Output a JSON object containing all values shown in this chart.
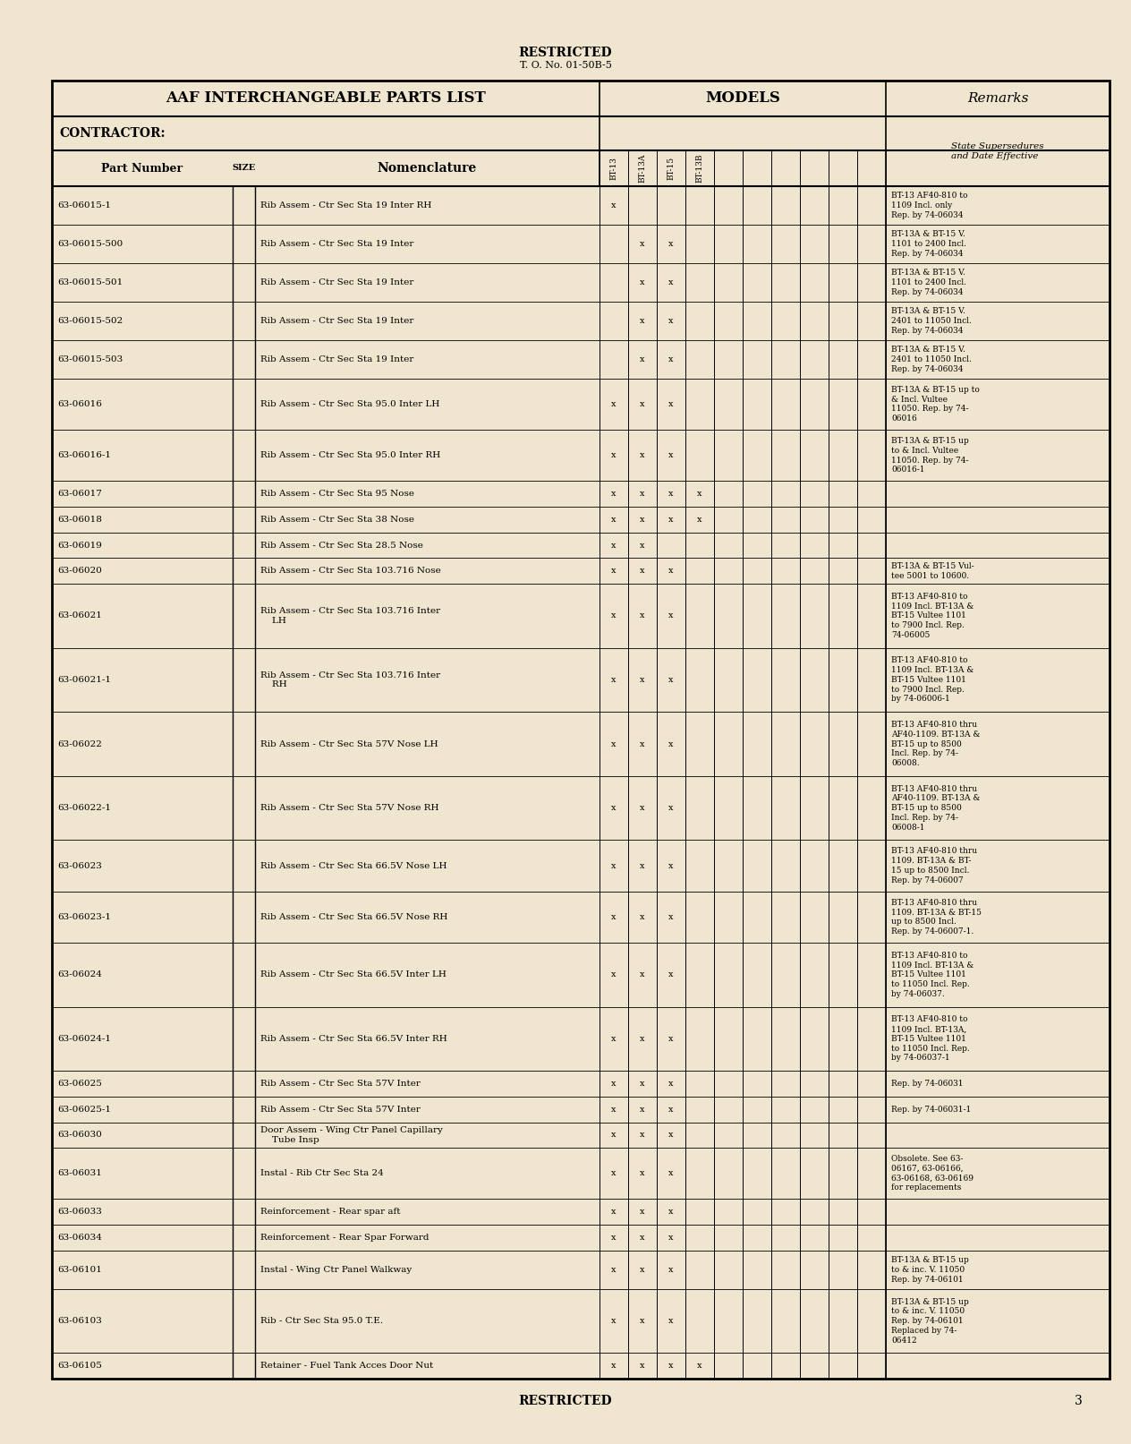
{
  "title_top": "RESTRICTED",
  "subtitle_top": "T. O. No. 01-50B-5",
  "title_bottom": "RESTRICTED",
  "page_number": "3",
  "header_left": "AAF INTERCHANGEABLE PARTS LIST",
  "header_models": "MODELS",
  "header_remarks": "Remarks",
  "contractor_label": "CONTRACTOR:",
  "col_part": "Part Number",
  "col_size": "SIZE",
  "col_nom": "Nomenclature",
  "col_state": "State Supersedures\nand Date Effective",
  "model_labels": [
    "BT-13",
    "BT-13A",
    "BT-15",
    "BT-13B",
    "",
    "",
    "",
    "",
    "",
    ""
  ],
  "bg_color": "#f0e6d0",
  "rows": [
    {
      "part": "63-06015-1",
      "nom": "Rib Assem - Ctr Sec Sta 19 Inter RH",
      "marks": [
        1,
        0,
        0,
        0,
        0,
        0,
        0,
        0,
        0,
        0
      ],
      "remarks": "BT-13 AF40-810 to\n1109 Incl. only\nRep. by 74-06034"
    },
    {
      "part": "63-06015-500",
      "nom": "Rib Assem - Ctr Sec Sta 19 Inter",
      "marks": [
        0,
        1,
        1,
        0,
        0,
        0,
        0,
        0,
        0,
        0
      ],
      "remarks": "BT-13A & BT-15 V.\n1101 to 2400 Incl.\nRep. by 74-06034"
    },
    {
      "part": "63-06015-501",
      "nom": "Rib Assem - Ctr Sec Sta 19 Inter",
      "marks": [
        0,
        1,
        1,
        0,
        0,
        0,
        0,
        0,
        0,
        0
      ],
      "remarks": "BT-13A & BT-15 V.\n1101 to 2400 Incl.\nRep. by 74-06034"
    },
    {
      "part": "63-06015-502",
      "nom": "Rib Assem - Ctr Sec Sta 19 Inter",
      "marks": [
        0,
        1,
        1,
        0,
        0,
        0,
        0,
        0,
        0,
        0
      ],
      "remarks": "BT-13A & BT-15 V.\n2401 to 11050 Incl.\nRep. by 74-06034"
    },
    {
      "part": "63-06015-503",
      "nom": "Rib Assem - Ctr Sec Sta 19 Inter",
      "marks": [
        0,
        1,
        1,
        0,
        0,
        0,
        0,
        0,
        0,
        0
      ],
      "remarks": "BT-13A & BT-15 V.\n2401 to 11050 Incl.\nRep. by 74-06034"
    },
    {
      "part": "63-06016",
      "nom": "Rib Assem - Ctr Sec Sta 95.0 Inter LH",
      "marks": [
        1,
        1,
        1,
        0,
        0,
        0,
        0,
        0,
        0,
        0
      ],
      "remarks": "BT-13A & BT-15 up to\n& Incl. Vultee\n11050. Rep. by 74-\n06016"
    },
    {
      "part": "63-06016-1",
      "nom": "Rib Assem - Ctr Sec Sta 95.0 Inter RH",
      "marks": [
        1,
        1,
        1,
        0,
        0,
        0,
        0,
        0,
        0,
        0
      ],
      "remarks": "BT-13A & BT-15 up\nto & Incl. Vultee\n11050. Rep. by 74-\n06016-1"
    },
    {
      "part": "63-06017",
      "nom": "Rib Assem - Ctr Sec Sta 95 Nose",
      "marks": [
        1,
        1,
        1,
        1,
        0,
        0,
        0,
        0,
        0,
        0
      ],
      "remarks": ""
    },
    {
      "part": "63-06018",
      "nom": "Rib Assem - Ctr Sec Sta 38 Nose",
      "marks": [
        1,
        1,
        1,
        1,
        0,
        0,
        0,
        0,
        0,
        0
      ],
      "remarks": ""
    },
    {
      "part": "63-06019",
      "nom": "Rib Assem - Ctr Sec Sta 28.5 Nose",
      "marks": [
        1,
        1,
        0,
        0,
        0,
        0,
        0,
        0,
        0,
        0
      ],
      "remarks": ""
    },
    {
      "part": "63-06020",
      "nom": "Rib Assem - Ctr Sec Sta 103.716 Nose",
      "marks": [
        1,
        1,
        1,
        0,
        0,
        0,
        0,
        0,
        0,
        0
      ],
      "remarks": "BT-13A & BT-15 Vul-\ntee 5001 to 10600."
    },
    {
      "part": "63-06021",
      "nom": "Rib Assem - Ctr Sec Sta 103.716 Inter\n    LH",
      "marks": [
        1,
        1,
        1,
        0,
        0,
        0,
        0,
        0,
        0,
        0
      ],
      "remarks": "BT-13 AF40-810 to\n1109 Incl. BT-13A &\nBT-15 Vultee 1101\nto 7900 Incl. Rep.\n74-06005"
    },
    {
      "part": "63-06021-1",
      "nom": "Rib Assem - Ctr Sec Sta 103.716 Inter\n    RH",
      "marks": [
        1,
        1,
        1,
        0,
        0,
        0,
        0,
        0,
        0,
        0
      ],
      "remarks": "BT-13 AF40-810 to\n1109 Incl. BT-13A &\nBT-15 Vultee 1101\nto 7900 Incl. Rep.\nby 74-06006-1"
    },
    {
      "part": "63-06022",
      "nom": "Rib Assem - Ctr Sec Sta 57V Nose LH",
      "marks": [
        1,
        1,
        1,
        0,
        0,
        0,
        0,
        0,
        0,
        0
      ],
      "remarks": "BT-13 AF40-810 thru\nAF40-1109. BT-13A &\nBT-15 up to 8500\nIncl. Rep. by 74-\n06008."
    },
    {
      "part": "63-06022-1",
      "nom": "Rib Assem - Ctr Sec Sta 57V Nose RH",
      "marks": [
        1,
        1,
        1,
        0,
        0,
        0,
        0,
        0,
        0,
        0
      ],
      "remarks": "BT-13 AF40-810 thru\nAF40-1109. BT-13A &\nBT-15 up to 8500\nIncl. Rep. by 74-\n06008-1"
    },
    {
      "part": "63-06023",
      "nom": "Rib Assem - Ctr Sec Sta 66.5V Nose LH",
      "marks": [
        1,
        1,
        1,
        0,
        0,
        0,
        0,
        0,
        0,
        0
      ],
      "remarks": "BT-13 AF40-810 thru\n1109. BT-13A & BT-\n15 up to 8500 Incl.\nRep. by 74-06007"
    },
    {
      "part": "63-06023-1",
      "nom": "Rib Assem - Ctr Sec Sta 66.5V Nose RH",
      "marks": [
        1,
        1,
        1,
        0,
        0,
        0,
        0,
        0,
        0,
        0
      ],
      "remarks": "BT-13 AF40-810 thru\n1109. BT-13A & BT-15\nup to 8500 Incl.\nRep. by 74-06007-1."
    },
    {
      "part": "63-06024",
      "nom": "Rib Assem - Ctr Sec Sta 66.5V Inter LH",
      "marks": [
        1,
        1,
        1,
        0,
        0,
        0,
        0,
        0,
        0,
        0
      ],
      "remarks": "BT-13 AF40-810 to\n1109 Incl. BT-13A &\nBT-15 Vultee 1101\nto 11050 Incl. Rep.\nby 74-06037."
    },
    {
      "part": "63-06024-1",
      "nom": "Rib Assem - Ctr Sec Sta 66.5V Inter RH",
      "marks": [
        1,
        1,
        1,
        0,
        0,
        0,
        0,
        0,
        0,
        0
      ],
      "remarks": "BT-13 AF40-810 to\n1109 Incl. BT-13A,\nBT-15 Vultee 1101\nto 11050 Incl. Rep.\nby 74-06037-1"
    },
    {
      "part": "63-06025",
      "nom": "Rib Assem - Ctr Sec Sta 57V Inter",
      "marks": [
        1,
        1,
        1,
        0,
        0,
        0,
        0,
        0,
        0,
        0
      ],
      "remarks": "Rep. by 74-06031"
    },
    {
      "part": "63-06025-1",
      "nom": "Rib Assem - Ctr Sec Sta 57V Inter",
      "marks": [
        1,
        1,
        1,
        0,
        0,
        0,
        0,
        0,
        0,
        0
      ],
      "remarks": "Rep. by 74-06031-1"
    },
    {
      "part": "63-06030",
      "nom": "Door Assem - Wing Ctr Panel Capillary\n    Tube Insp",
      "marks": [
        1,
        1,
        1,
        0,
        0,
        0,
        0,
        0,
        0,
        0
      ],
      "remarks": ""
    },
    {
      "part": "63-06031",
      "nom": "Instal - Rib Ctr Sec Sta 24",
      "marks": [
        1,
        1,
        1,
        0,
        0,
        0,
        0,
        0,
        0,
        0
      ],
      "remarks": "Obsolete. See 63-\n06167, 63-06166,\n63-06168, 63-06169\nfor replacements"
    },
    {
      "part": "63-06033",
      "nom": "Reinforcement - Rear spar aft",
      "marks": [
        1,
        1,
        1,
        0,
        0,
        0,
        0,
        0,
        0,
        0
      ],
      "remarks": ""
    },
    {
      "part": "63-06034",
      "nom": "Reinforcement - Rear Spar Forward",
      "marks": [
        1,
        1,
        1,
        0,
        0,
        0,
        0,
        0,
        0,
        0
      ],
      "remarks": ""
    },
    {
      "part": "63-06101",
      "nom": "Instal - Wing Ctr Panel Walkway",
      "marks": [
        1,
        1,
        1,
        0,
        0,
        0,
        0,
        0,
        0,
        0
      ],
      "remarks": "BT-13A & BT-15 up\nto & inc. V. 11050\nRep. by 74-06101"
    },
    {
      "part": "63-06103",
      "nom": "Rib - Ctr Sec Sta 95.0 T.E.",
      "marks": [
        1,
        1,
        1,
        0,
        0,
        0,
        0,
        0,
        0,
        0
      ],
      "remarks": "BT-13A & BT-15 up\nto & inc. V. 11050\nRep. by 74-06101\nReplaced by 74-\n06412"
    },
    {
      "part": "63-06105",
      "nom": "Retainer - Fuel Tank Acces Door Nut",
      "marks": [
        1,
        1,
        1,
        1,
        0,
        0,
        0,
        0,
        0,
        0
      ],
      "remarks": ""
    }
  ]
}
